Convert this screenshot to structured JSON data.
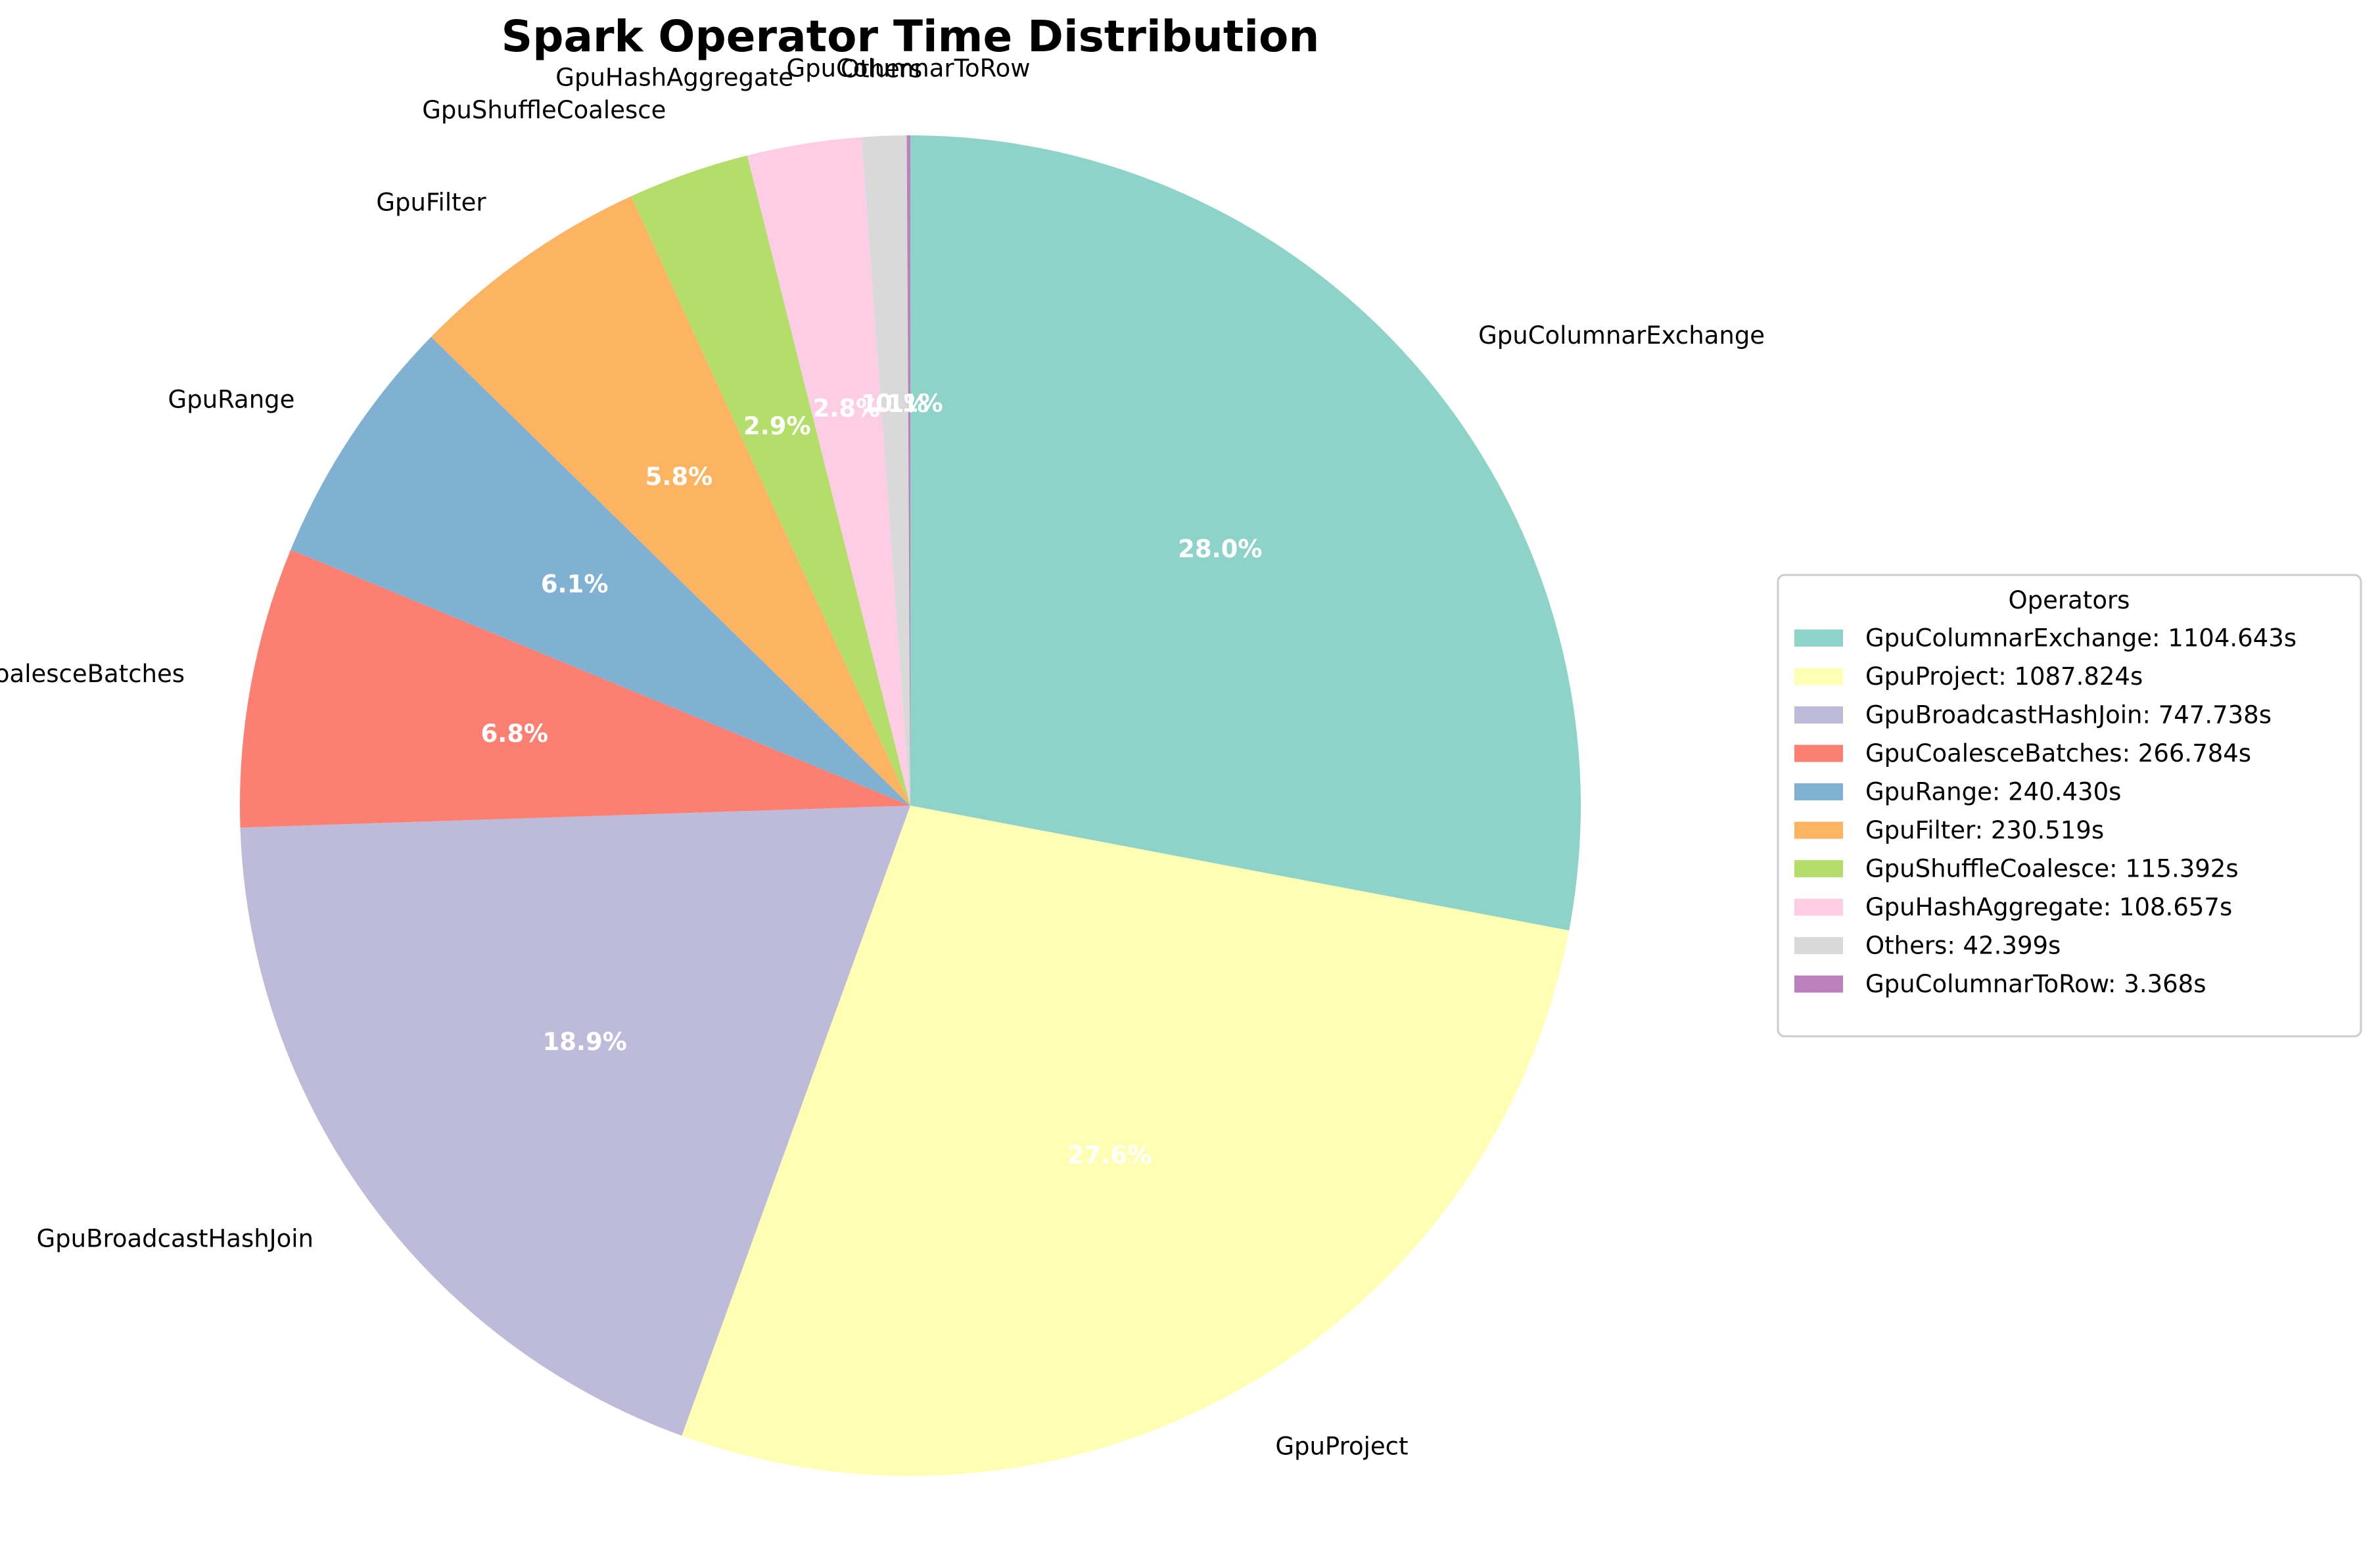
{
  "chart_data": {
    "type": "pie",
    "title": "Spark Operator Time Distribution",
    "start_angle_deg": 90,
    "direction": "clockwise",
    "legend": {
      "title": "Operators",
      "placement": "center-right"
    },
    "slices": [
      {
        "label": "GpuColumnarExchange",
        "value": 1104.643,
        "pct_label": "28.0%",
        "legend_label": "GpuColumnarExchange: 1104.643s",
        "color": "#8dd3c7"
      },
      {
        "label": "GpuProject",
        "value": 1087.824,
        "pct_label": "27.6%",
        "legend_label": "GpuProject: 1087.824s",
        "color": "#ffffb3"
      },
      {
        "label": "GpuBroadcastHashJoin",
        "value": 747.738,
        "pct_label": "18.9%",
        "legend_label": "GpuBroadcastHashJoin: 747.738s",
        "color": "#bebada"
      },
      {
        "label": "GpuCoalesceBatches",
        "value": 266.784,
        "pct_label": "6.8%",
        "legend_label": "GpuCoalesceBatches: 266.784s",
        "color": "#fb8072"
      },
      {
        "label": "GpuRange",
        "value": 240.43,
        "pct_label": "6.1%",
        "legend_label": "GpuRange: 240.430s",
        "color": "#80b1d3"
      },
      {
        "label": "GpuFilter",
        "value": 230.519,
        "pct_label": "5.8%",
        "legend_label": "GpuFilter: 230.519s",
        "color": "#fdb462"
      },
      {
        "label": "GpuShuffleCoalesce",
        "value": 115.392,
        "pct_label": "2.9%",
        "legend_label": "GpuShuffleCoalesce: 115.392s",
        "color": "#b3de69"
      },
      {
        "label": "GpuHashAggregate",
        "value": 108.657,
        "pct_label": "2.8%",
        "legend_label": "GpuHashAggregate: 108.657s",
        "color": "#fccde5"
      },
      {
        "label": "Others",
        "value": 42.399,
        "pct_label": "1.1%",
        "legend_label": "Others: 42.399s",
        "color": "#d9d9d9"
      },
      {
        "label": "GpuColumnarToRow",
        "value": 3.368,
        "pct_label": "0.1%",
        "legend_label": "GpuColumnarToRow: 3.368s",
        "color": "#bc80bd"
      }
    ]
  }
}
